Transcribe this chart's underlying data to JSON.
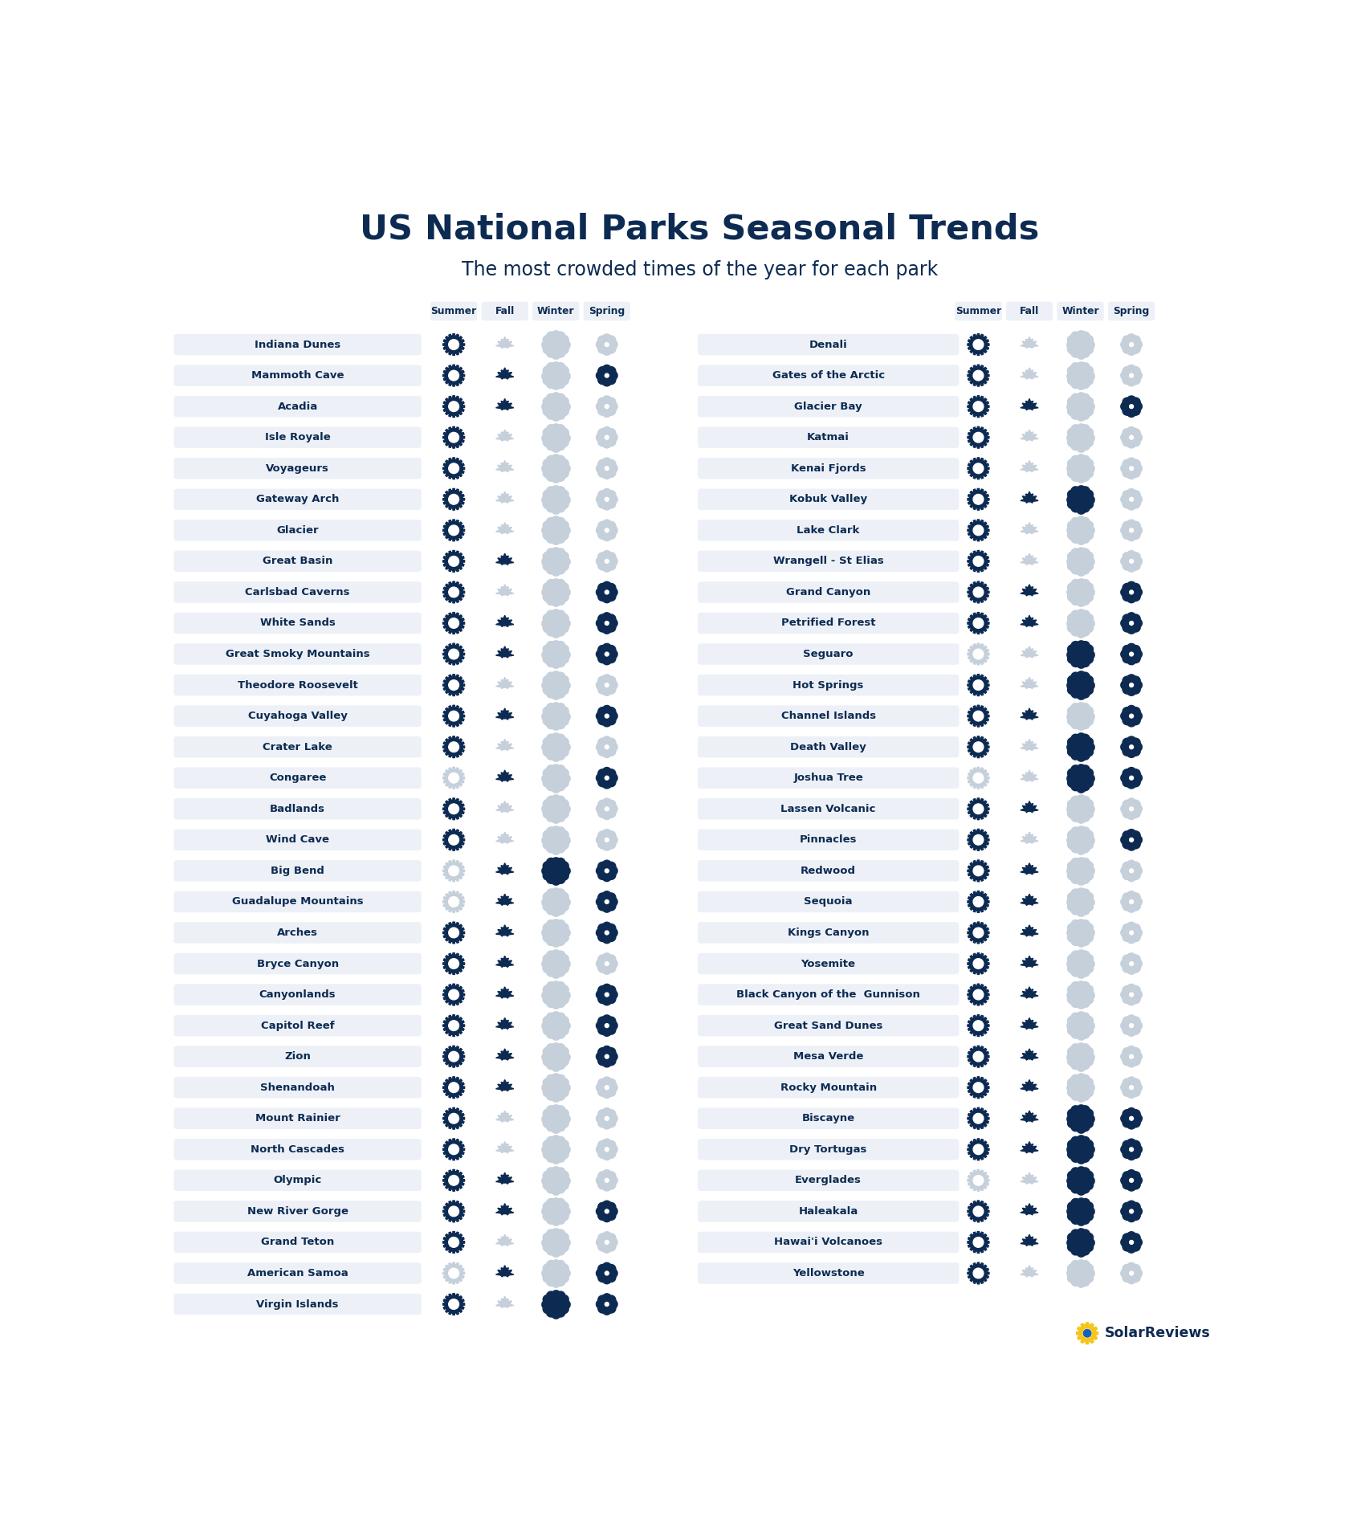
{
  "title": "US National Parks Seasonal Trends",
  "subtitle": "The most crowded times of the year for each park",
  "active_color": "#0d2b52",
  "inactive_color": "#c5d0db",
  "label_bg_color": "#edf1f7",
  "seasons": [
    "Summer",
    "Fall",
    "Winter",
    "Spring"
  ],
  "left_parks": [
    {
      "name": "Indiana Dunes",
      "s": [
        1,
        0,
        0,
        0
      ]
    },
    {
      "name": "Mammoth Cave",
      "s": [
        1,
        1,
        0,
        1
      ]
    },
    {
      "name": "Acadia",
      "s": [
        1,
        1,
        0,
        0
      ]
    },
    {
      "name": "Isle Royale",
      "s": [
        1,
        0,
        0,
        0
      ]
    },
    {
      "name": "Voyageurs",
      "s": [
        1,
        0,
        0,
        0
      ]
    },
    {
      "name": "Gateway Arch",
      "s": [
        1,
        0,
        0,
        0
      ]
    },
    {
      "name": "Glacier",
      "s": [
        1,
        0,
        0,
        0
      ]
    },
    {
      "name": "Great Basin",
      "s": [
        1,
        1,
        0,
        0
      ]
    },
    {
      "name": "Carlsbad Caverns",
      "s": [
        1,
        0,
        0,
        1
      ]
    },
    {
      "name": "White Sands",
      "s": [
        1,
        1,
        0,
        1
      ]
    },
    {
      "name": "Great Smoky Mountains",
      "s": [
        1,
        1,
        0,
        1
      ]
    },
    {
      "name": "Theodore Roosevelt",
      "s": [
        1,
        0,
        0,
        0
      ]
    },
    {
      "name": "Cuyahoga Valley",
      "s": [
        1,
        1,
        0,
        1
      ]
    },
    {
      "name": "Crater Lake",
      "s": [
        1,
        0,
        0,
        0
      ]
    },
    {
      "name": "Congaree",
      "s": [
        0,
        1,
        0,
        1
      ]
    },
    {
      "name": "Badlands",
      "s": [
        1,
        0,
        0,
        0
      ]
    },
    {
      "name": "Wind Cave",
      "s": [
        1,
        0,
        0,
        0
      ]
    },
    {
      "name": "Big Bend",
      "s": [
        0,
        1,
        1,
        1
      ]
    },
    {
      "name": "Guadalupe Mountains",
      "s": [
        0,
        1,
        0,
        1
      ]
    },
    {
      "name": "Arches",
      "s": [
        1,
        1,
        0,
        1
      ]
    },
    {
      "name": "Bryce Canyon",
      "s": [
        1,
        1,
        0,
        0
      ]
    },
    {
      "name": "Canyonlands",
      "s": [
        1,
        1,
        0,
        1
      ]
    },
    {
      "name": "Capitol Reef",
      "s": [
        1,
        1,
        0,
        1
      ]
    },
    {
      "name": "Zion",
      "s": [
        1,
        1,
        0,
        1
      ]
    },
    {
      "name": "Shenandoah",
      "s": [
        1,
        1,
        0,
        0
      ]
    },
    {
      "name": "Mount Rainier",
      "s": [
        1,
        0,
        0,
        0
      ]
    },
    {
      "name": "North Cascades",
      "s": [
        1,
        0,
        0,
        0
      ]
    },
    {
      "name": "Olympic",
      "s": [
        1,
        1,
        0,
        0
      ]
    },
    {
      "name": "New River Gorge",
      "s": [
        1,
        1,
        0,
        1
      ]
    },
    {
      "name": "Grand Teton",
      "s": [
        1,
        0,
        0,
        0
      ]
    },
    {
      "name": "American Samoa",
      "s": [
        0,
        1,
        0,
        1
      ]
    },
    {
      "name": "Virgin Islands",
      "s": [
        1,
        0,
        1,
        1
      ]
    }
  ],
  "right_parks": [
    {
      "name": "Denali",
      "s": [
        1,
        0,
        0,
        0
      ]
    },
    {
      "name": "Gates of the Arctic",
      "s": [
        1,
        0,
        0,
        0
      ]
    },
    {
      "name": "Glacier Bay",
      "s": [
        1,
        1,
        0,
        1
      ]
    },
    {
      "name": "Katmai",
      "s": [
        1,
        0,
        0,
        0
      ]
    },
    {
      "name": "Kenai Fjords",
      "s": [
        1,
        0,
        0,
        0
      ]
    },
    {
      "name": "Kobuk Valley",
      "s": [
        1,
        1,
        1,
        0
      ]
    },
    {
      "name": "Lake Clark",
      "s": [
        1,
        0,
        0,
        0
      ]
    },
    {
      "name": "Wrangell - St Elias",
      "s": [
        1,
        0,
        0,
        0
      ]
    },
    {
      "name": "Grand Canyon",
      "s": [
        1,
        1,
        0,
        1
      ]
    },
    {
      "name": "Petrified Forest",
      "s": [
        1,
        1,
        0,
        1
      ]
    },
    {
      "name": "Seguaro",
      "s": [
        0,
        0,
        1,
        1
      ]
    },
    {
      "name": "Hot Springs",
      "s": [
        1,
        0,
        1,
        1
      ]
    },
    {
      "name": "Channel Islands",
      "s": [
        1,
        1,
        0,
        1
      ]
    },
    {
      "name": "Death Valley",
      "s": [
        1,
        0,
        1,
        1
      ]
    },
    {
      "name": "Joshua Tree",
      "s": [
        0,
        0,
        1,
        1
      ]
    },
    {
      "name": "Lassen Volcanic",
      "s": [
        1,
        1,
        0,
        0
      ]
    },
    {
      "name": "Pinnacles",
      "s": [
        1,
        0,
        0,
        1
      ]
    },
    {
      "name": "Redwood",
      "s": [
        1,
        1,
        0,
        0
      ]
    },
    {
      "name": "Sequoia",
      "s": [
        1,
        1,
        0,
        0
      ]
    },
    {
      "name": "Kings Canyon",
      "s": [
        1,
        1,
        0,
        0
      ]
    },
    {
      "name": "Yosemite",
      "s": [
        1,
        1,
        0,
        0
      ]
    },
    {
      "name": "Black Canyon of the  Gunnison",
      "s": [
        1,
        1,
        0,
        0
      ]
    },
    {
      "name": "Great Sand Dunes",
      "s": [
        1,
        1,
        0,
        0
      ]
    },
    {
      "name": "Mesa Verde",
      "s": [
        1,
        1,
        0,
        0
      ]
    },
    {
      "name": "Rocky Mountain",
      "s": [
        1,
        1,
        0,
        0
      ]
    },
    {
      "name": "Biscayne",
      "s": [
        1,
        1,
        1,
        1
      ]
    },
    {
      "name": "Dry Tortugas",
      "s": [
        1,
        1,
        1,
        1
      ]
    },
    {
      "name": "Everglades",
      "s": [
        0,
        0,
        1,
        1
      ]
    },
    {
      "name": "Haleakala",
      "s": [
        1,
        1,
        1,
        1
      ]
    },
    {
      "name": "Hawai'i Volcanoes",
      "s": [
        1,
        1,
        1,
        1
      ]
    },
    {
      "name": "Yellowstone",
      "s": [
        1,
        0,
        0,
        0
      ]
    }
  ]
}
